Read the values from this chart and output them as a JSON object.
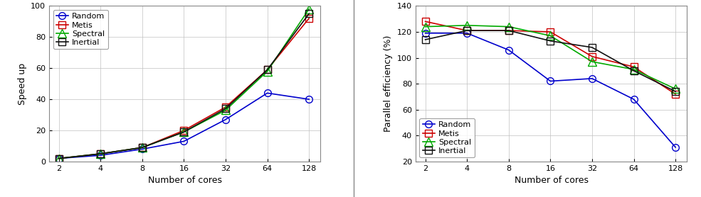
{
  "cores": [
    2,
    4,
    8,
    16,
    32,
    64,
    128
  ],
  "speedup": {
    "Random": [
      2,
      4,
      8,
      13,
      27,
      44,
      40
    ],
    "Metis": [
      2,
      5,
      9,
      20,
      35,
      59,
      92
    ],
    "Spectral": [
      2,
      5,
      9,
      19,
      33,
      58,
      98
    ],
    "Inertial": [
      2,
      5,
      9,
      19,
      34,
      59,
      95
    ]
  },
  "efficiency": {
    "Random": [
      119,
      119,
      106,
      82,
      84,
      68,
      31
    ],
    "Metis": [
      128,
      121,
      121,
      120,
      101,
      93,
      72
    ],
    "Spectral": [
      124,
      125,
      124,
      117,
      97,
      91,
      76
    ],
    "Inertial": [
      114,
      121,
      121,
      113,
      108,
      90,
      74
    ]
  },
  "colors": {
    "Random": "#0000cc",
    "Metis": "#cc0000",
    "Spectral": "#00aa00",
    "Inertial": "#111111"
  },
  "markers": {
    "Random": "o",
    "Metis": "s",
    "Spectral": "^",
    "Inertial": "s"
  },
  "marker_sizes": {
    "Random": 7,
    "Metis": 7,
    "Spectral": 8,
    "Inertial": 7
  },
  "speedup_ylim": [
    0,
    100
  ],
  "speedup_yticks": [
    0,
    20,
    40,
    60,
    80,
    100
  ],
  "efficiency_ylim": [
    20,
    140
  ],
  "efficiency_yticks": [
    20,
    40,
    60,
    80,
    100,
    120,
    140
  ],
  "xlabel": "Number of cores",
  "speedup_ylabel": "Speed up",
  "efficiency_ylabel": "Parallel efficiency (%)",
  "plot_bg": "#ffffff",
  "fig_bg": "#ffffff",
  "series": [
    "Random",
    "Metis",
    "Spectral",
    "Inertial"
  ]
}
